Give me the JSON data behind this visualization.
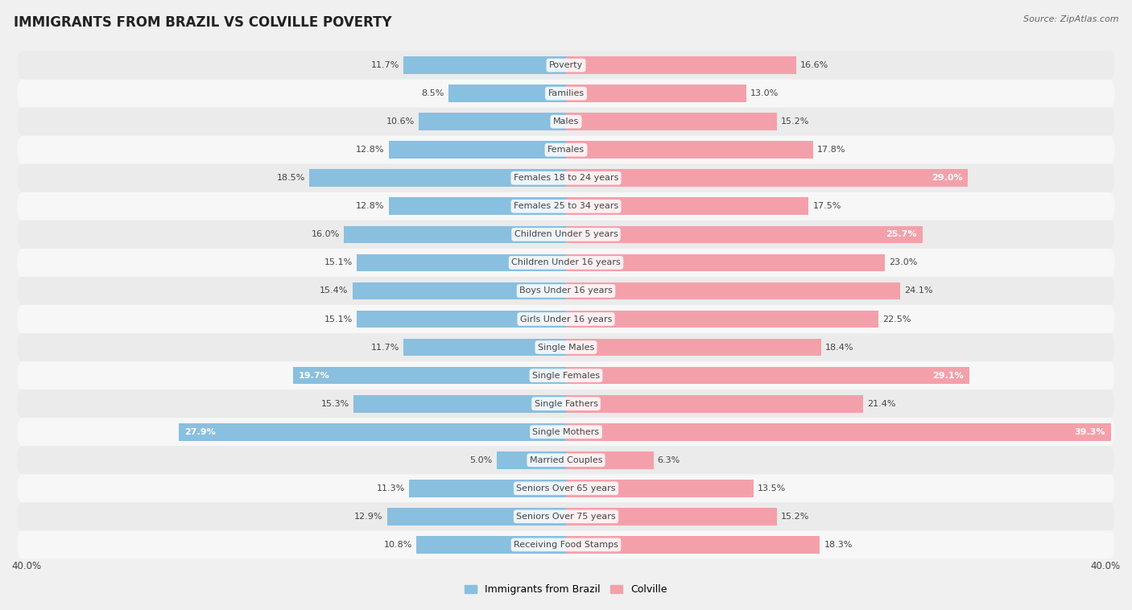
{
  "title": "IMMIGRANTS FROM BRAZIL VS COLVILLE POVERTY",
  "source": "Source: ZipAtlas.com",
  "categories": [
    "Poverty",
    "Families",
    "Males",
    "Females",
    "Females 18 to 24 years",
    "Females 25 to 34 years",
    "Children Under 5 years",
    "Children Under 16 years",
    "Boys Under 16 years",
    "Girls Under 16 years",
    "Single Males",
    "Single Females",
    "Single Fathers",
    "Single Mothers",
    "Married Couples",
    "Seniors Over 65 years",
    "Seniors Over 75 years",
    "Receiving Food Stamps"
  ],
  "brazil_values": [
    11.7,
    8.5,
    10.6,
    12.8,
    18.5,
    12.8,
    16.0,
    15.1,
    15.4,
    15.1,
    11.7,
    19.7,
    15.3,
    27.9,
    5.0,
    11.3,
    12.9,
    10.8
  ],
  "colville_values": [
    16.6,
    13.0,
    15.2,
    17.8,
    29.0,
    17.5,
    25.7,
    23.0,
    24.1,
    22.5,
    18.4,
    29.1,
    21.4,
    39.3,
    6.3,
    13.5,
    15.2,
    18.3
  ],
  "brazil_color": "#89bfdf",
  "colville_color": "#f4a0aa",
  "row_color_even": "#ebebeb",
  "row_color_odd": "#f7f7f7",
  "background_color": "#f0f0f0",
  "bar_height": 0.62,
  "xlim": 40.0,
  "label_inside_threshold_brazil": 19.0,
  "label_inside_threshold_colville": 25.0,
  "legend_label_brazil": "Immigrants from Brazil",
  "legend_label_colville": "Colville",
  "title_fontsize": 12,
  "source_fontsize": 8,
  "label_fontsize": 8,
  "category_fontsize": 8
}
